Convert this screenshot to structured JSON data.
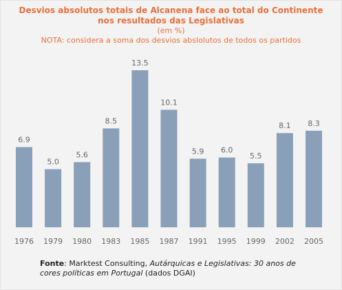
{
  "header": {
    "title_line1": "Desvios absolutos totais de Alcanena face ao total do Continente",
    "title_line2": "nos resultados das Legislativas",
    "unit": "(em %)",
    "note": "NOTA: considera a soma dos desvios abslolutos de todos os partidos"
  },
  "colors": {
    "title": "#e8703a",
    "bar": "#8a9fb8",
    "label": "#666666",
    "background": "#f3f3f3"
  },
  "chart_data": {
    "type": "bar",
    "title": "Desvios absolutos totais de Alcanena face ao total do Continente nos resultados das Legislativas",
    "subtitle": "(em %)",
    "categories": [
      "1976",
      "1979",
      "1980",
      "1983",
      "1985",
      "1987",
      "1991",
      "1995",
      "1999",
      "2002",
      "2005"
    ],
    "values": [
      6.9,
      5.0,
      5.6,
      8.5,
      13.5,
      10.1,
      5.9,
      6.0,
      5.5,
      8.1,
      8.3
    ],
    "value_labels": [
      "6.9",
      "5.0",
      "5.6",
      "8.5",
      "13.5",
      "10.1",
      "5.9",
      "6.0",
      "5.5",
      "8.1",
      "8.3"
    ],
    "xlabel": "",
    "ylabel": "",
    "ylim": [
      0,
      13.5
    ],
    "grid": false,
    "legend": "none"
  },
  "source": {
    "label": "Fonte",
    "text1": ": Marktest Consulting, ",
    "italic": "Autárquicas e Legislativas: 30 anos de cores políticas em Portugal",
    "text2": " (dados DGAI)"
  }
}
